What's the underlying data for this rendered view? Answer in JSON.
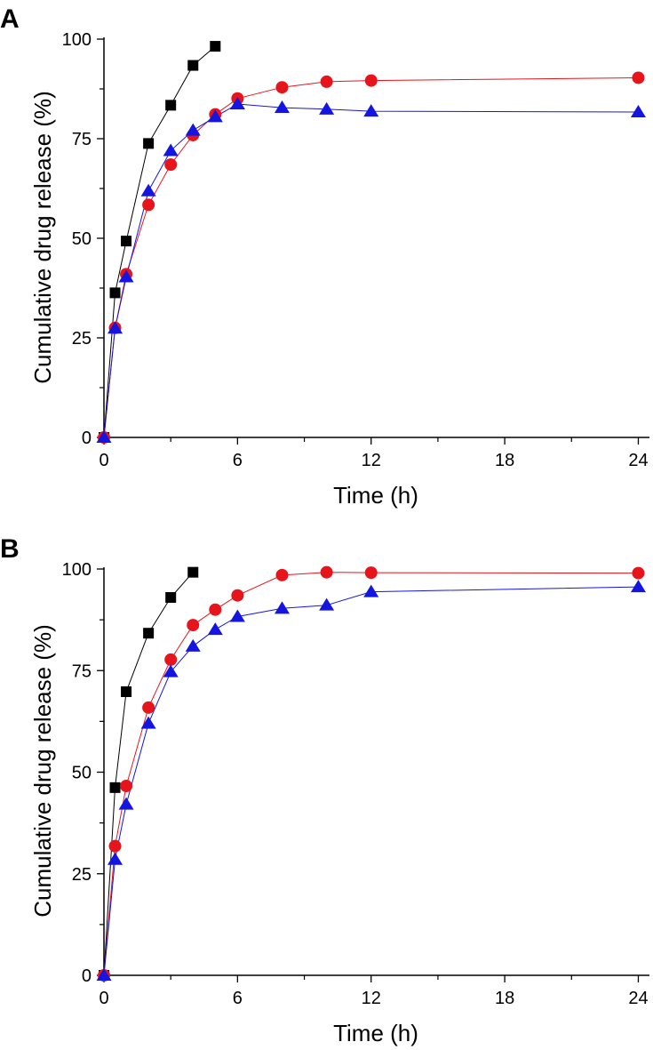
{
  "chart_data": [
    {
      "type": "line",
      "panel": "A",
      "xlabel": "Time (h)",
      "ylabel": "Cumulative drug release (%)",
      "xlim": [
        0,
        24.5
      ],
      "ylim": [
        0,
        100
      ],
      "xticks": [
        0,
        6,
        12,
        18,
        24
      ],
      "xtick_labels": [
        "0",
        "6",
        "12",
        "18",
        "24"
      ],
      "yticks": [
        0,
        25,
        50,
        75,
        100
      ],
      "ytick_labels": [
        "0",
        "25",
        "50",
        "75",
        "100"
      ],
      "legend": "none",
      "grid": false,
      "series": [
        {
          "name": "black squares",
          "color": "#000000",
          "marker": "square",
          "x": [
            0,
            0.5,
            1,
            2,
            3,
            4,
            5
          ],
          "y": [
            0,
            36.3,
            49.3,
            73.8,
            83.4,
            93.4,
            98.2
          ]
        },
        {
          "name": "red circles",
          "color": "#e8141c",
          "marker": "circle",
          "x": [
            0,
            0.5,
            1,
            2,
            3,
            4,
            5,
            6,
            8,
            10,
            12,
            24
          ],
          "y": [
            0,
            27.5,
            41.0,
            58.4,
            68.5,
            75.9,
            81.1,
            85.1,
            87.9,
            89.3,
            89.6,
            90.3
          ]
        },
        {
          "name": "blue triangles",
          "color": "#1515e0",
          "marker": "triangle",
          "x": [
            0,
            0.5,
            1,
            2,
            3,
            4,
            5,
            6,
            8,
            10,
            12,
            24
          ],
          "y": [
            0,
            27.4,
            40.3,
            61.9,
            72.0,
            77.1,
            80.5,
            83.7,
            82.8,
            82.4,
            81.9,
            81.7
          ]
        }
      ]
    },
    {
      "type": "line",
      "panel": "B",
      "xlabel": "Time (h)",
      "ylabel": "Cumulative drug release (%)",
      "xlim": [
        0,
        24.5
      ],
      "ylim": [
        0,
        100
      ],
      "xticks": [
        0,
        6,
        12,
        18,
        24
      ],
      "xtick_labels": [
        "0",
        "6",
        "12",
        "18",
        "24"
      ],
      "yticks": [
        0,
        25,
        50,
        75,
        100
      ],
      "ytick_labels": [
        "0",
        "25",
        "50",
        "75",
        "100"
      ],
      "legend": "none",
      "grid": false,
      "series": [
        {
          "name": "black squares",
          "color": "#000000",
          "marker": "square",
          "x": [
            0,
            0.5,
            1,
            2,
            3,
            4
          ],
          "y": [
            0,
            46.2,
            69.8,
            84.2,
            93.0,
            99.2
          ]
        },
        {
          "name": "red circles",
          "color": "#e8141c",
          "marker": "circle",
          "x": [
            0,
            0.5,
            1,
            2,
            3,
            4,
            5,
            6,
            8,
            10,
            12,
            24
          ],
          "y": [
            0,
            31.8,
            46.6,
            65.9,
            77.7,
            86.2,
            90.0,
            93.5,
            98.5,
            99.2,
            99.1,
            99.0
          ]
        },
        {
          "name": "blue triangles",
          "color": "#1515e0",
          "marker": "triangle",
          "x": [
            0,
            0.5,
            1,
            2,
            3,
            4,
            5,
            6,
            8,
            10,
            12,
            24
          ],
          "y": [
            0,
            28.5,
            42.1,
            62.0,
            74.7,
            81.0,
            85.1,
            88.3,
            90.3,
            91.1,
            94.4,
            95.6
          ]
        }
      ]
    }
  ]
}
